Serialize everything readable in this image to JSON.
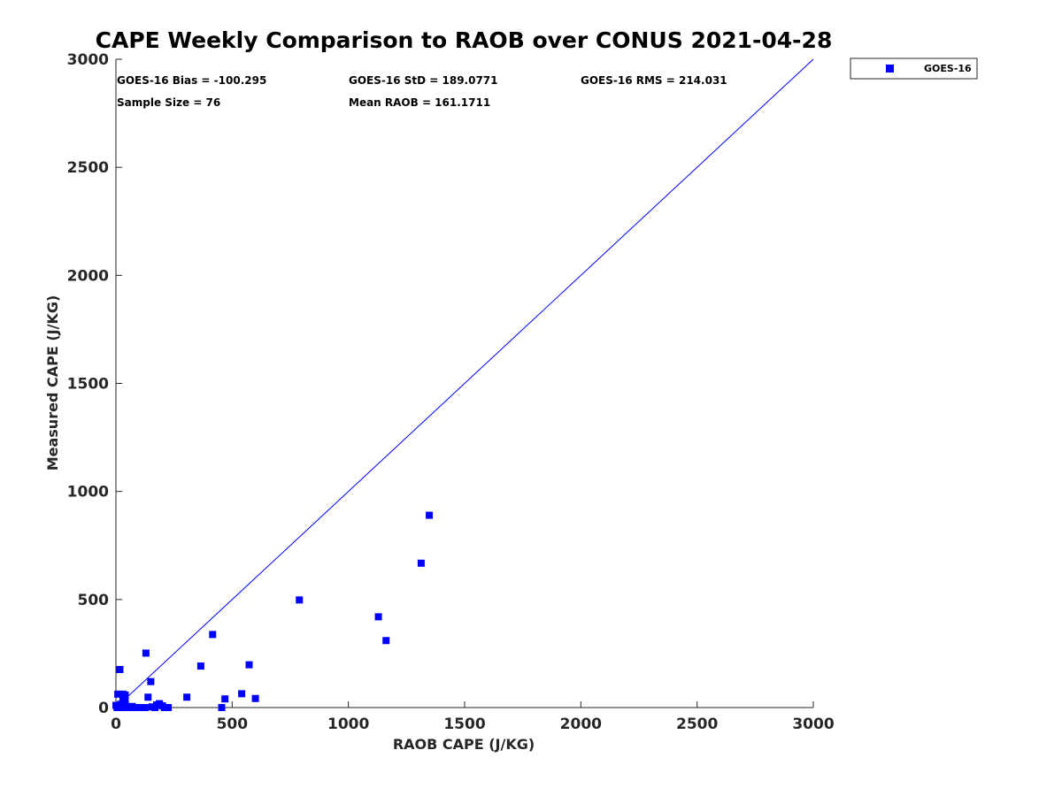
{
  "chart_data": {
    "type": "scatter",
    "title": "CAPE Weekly Comparison to RAOB over CONUS 2021-04-28",
    "xlabel": "RAOB CAPE (J/KG)",
    "ylabel": "Measured CAPE (J/KG)",
    "xlim": [
      0,
      3000
    ],
    "ylim": [
      0,
      3000
    ],
    "xticks": [
      0,
      500,
      1000,
      1500,
      2000,
      2500,
      3000
    ],
    "yticks": [
      0,
      500,
      1000,
      1500,
      2000,
      2500,
      3000
    ],
    "grid": false,
    "legend_position": "outside-top-right",
    "reference_line": {
      "from": [
        0,
        0
      ],
      "to": [
        3000,
        3000
      ],
      "color": "#0000ff"
    },
    "series": [
      {
        "name": "GOES-16",
        "color": "#0000ff",
        "marker": "square",
        "points": [
          [
            1348,
            890
          ],
          [
            1313,
            668
          ],
          [
            1129,
            420
          ],
          [
            1162,
            310
          ],
          [
            789,
            498
          ],
          [
            416,
            338
          ],
          [
            365,
            192
          ],
          [
            573,
            198
          ],
          [
            129,
            252
          ],
          [
            150,
            120
          ],
          [
            17,
            176
          ],
          [
            305,
            48
          ],
          [
            541,
            64
          ],
          [
            600,
            42
          ],
          [
            469,
            40
          ],
          [
            455,
            0
          ],
          [
            138,
            48
          ],
          [
            187,
            18
          ],
          [
            175,
            12
          ],
          [
            200,
            8
          ],
          [
            225,
            0
          ],
          [
            208,
            0
          ],
          [
            168,
            0
          ],
          [
            110,
            0
          ],
          [
            95,
            0
          ],
          [
            80,
            0
          ],
          [
            65,
            0
          ],
          [
            50,
            0
          ],
          [
            35,
            0
          ],
          [
            20,
            0
          ],
          [
            5,
            0
          ],
          [
            0,
            10
          ],
          [
            8,
            62
          ],
          [
            30,
            62
          ],
          [
            40,
            58
          ],
          [
            40,
            40
          ],
          [
            40,
            20
          ],
          [
            30,
            30
          ],
          [
            20,
            15
          ],
          [
            10,
            0
          ],
          [
            60,
            0
          ],
          [
            70,
            5
          ],
          [
            125,
            0
          ],
          [
            155,
            3
          ]
        ]
      }
    ],
    "annotations": {
      "bias": "GOES-16 Bias = -100.295",
      "std": "GOES-16 StD = 189.0771",
      "rms": "GOES-16 RMS = 214.031",
      "sample_size": "Sample Size = 76",
      "mean_raob": "Mean RAOB = 161.1711"
    }
  }
}
